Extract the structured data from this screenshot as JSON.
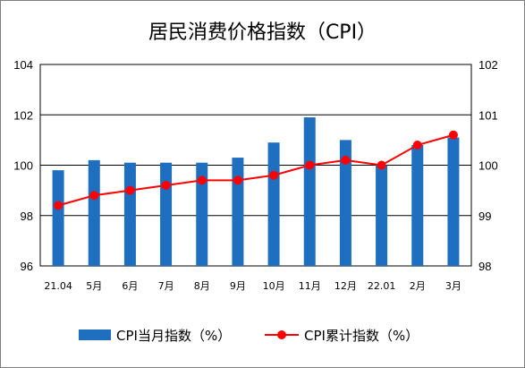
{
  "chart_data": {
    "type": "bar+line",
    "title": "居民消费价格指数（CPI）",
    "categories": [
      "21.04",
      "5月",
      "6月",
      "7月",
      "8月",
      "9月",
      "10月",
      "11月",
      "12月",
      "22.01",
      "2月",
      "3月"
    ],
    "series": [
      {
        "name": "CPI当月指数（%）",
        "type": "bar",
        "axis": "left",
        "color": "#1f6fc0",
        "values": [
          99.8,
          100.2,
          100.1,
          100.1,
          100.1,
          100.3,
          100.9,
          101.9,
          101.0,
          100.0,
          100.8,
          101.1
        ]
      },
      {
        "name": "CPI累计指数（%）",
        "type": "line",
        "axis": "right",
        "color": "#ff0000",
        "values": [
          99.2,
          99.4,
          99.5,
          99.6,
          99.7,
          99.7,
          99.8,
          100.0,
          100.1,
          100.0,
          100.4,
          100.6
        ]
      }
    ],
    "y_left": {
      "min": 96,
      "max": 104,
      "ticks": [
        "96",
        "98",
        "100",
        "102",
        "104"
      ]
    },
    "y_right": {
      "min": 98,
      "max": 102,
      "ticks": [
        "98",
        "99",
        "100",
        "101",
        "102"
      ]
    },
    "grid": true,
    "legend_position": "bottom"
  }
}
